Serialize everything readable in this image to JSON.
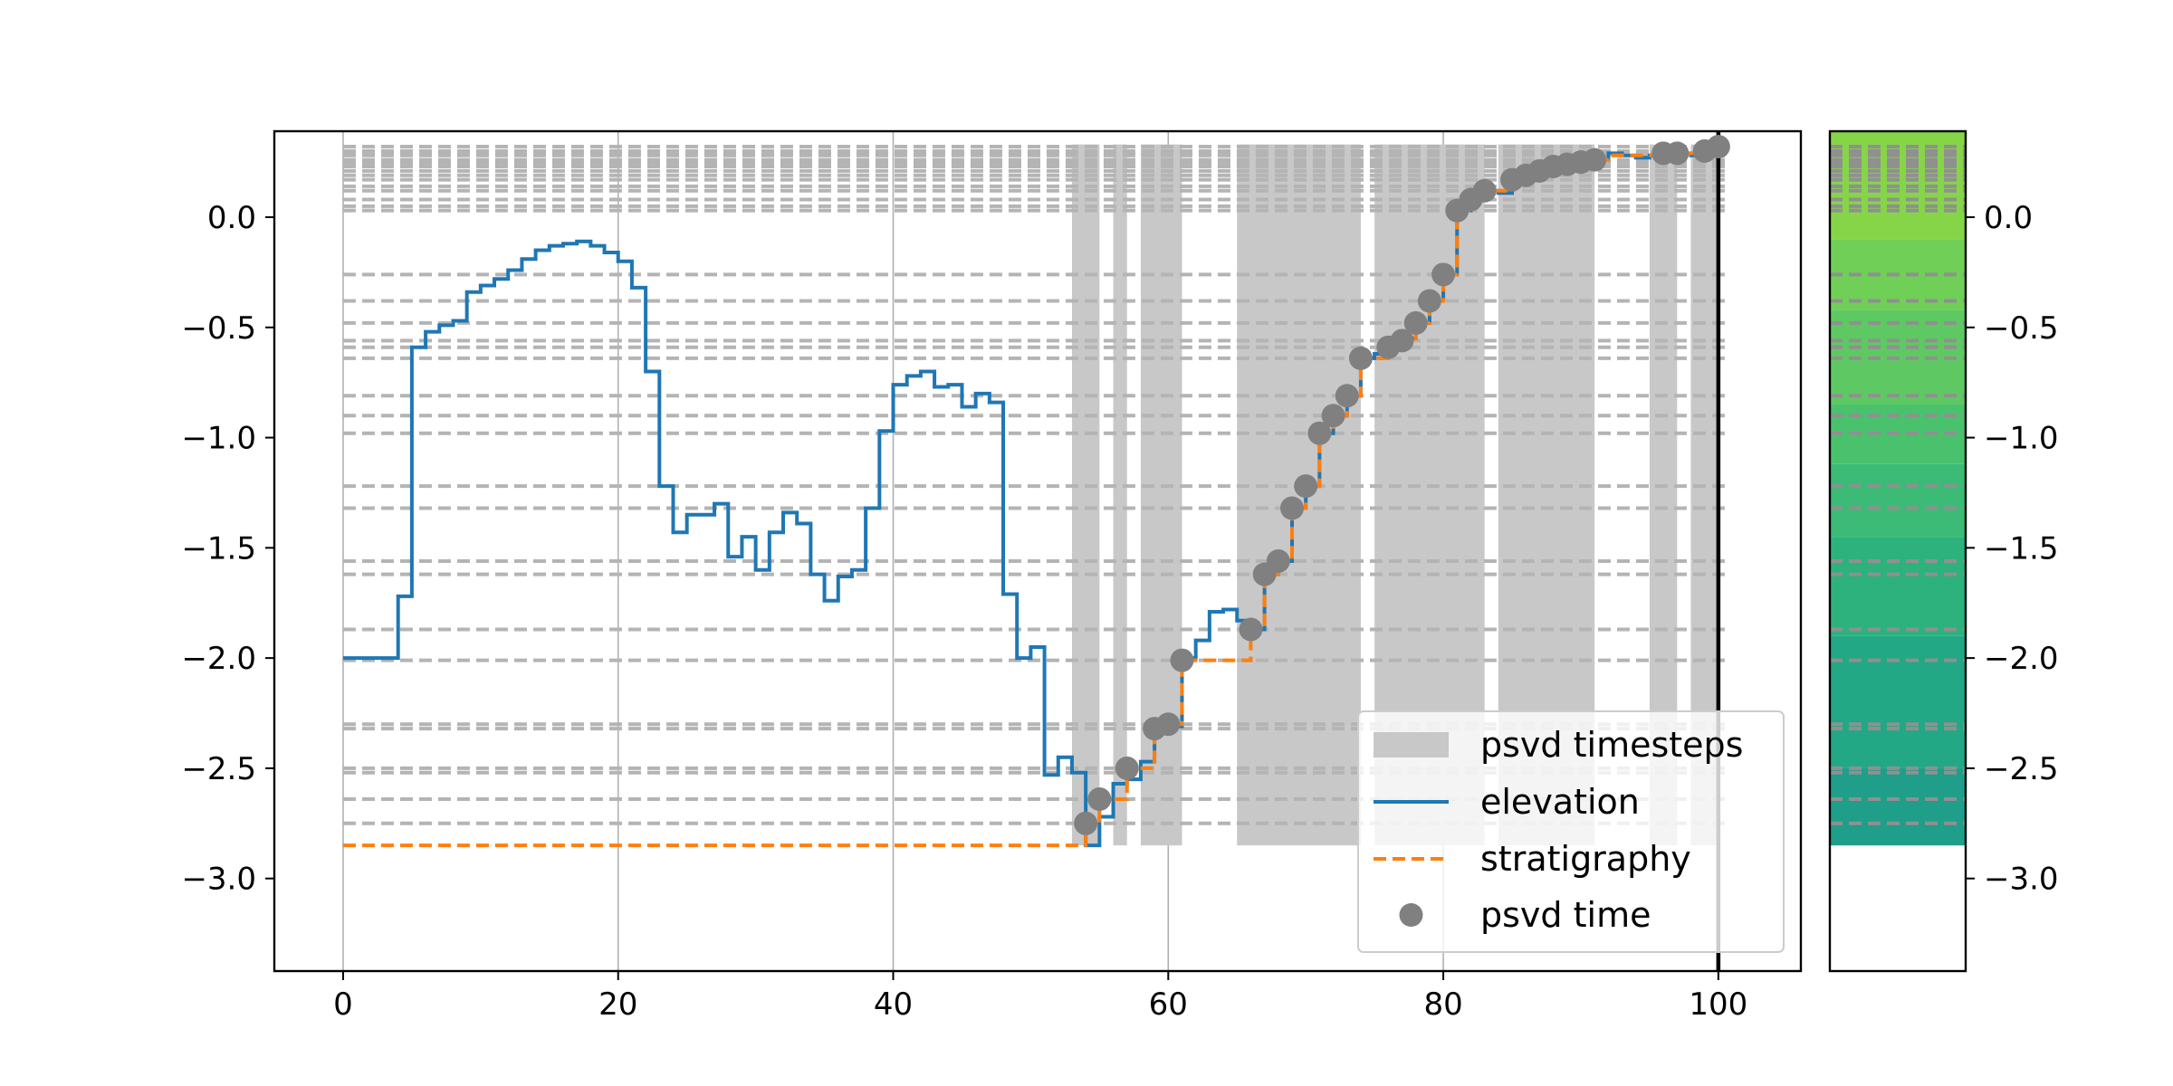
{
  "chart_data": {
    "type": "line",
    "title": "",
    "xlabel": "",
    "ylabel": "",
    "xlim": [
      -5,
      106
    ],
    "ylim": [
      -3.42,
      0.39
    ],
    "xticks": [
      0,
      20,
      40,
      60,
      80,
      100
    ],
    "xtick_labels": [
      "0",
      "20",
      "40",
      "60",
      "80",
      "100"
    ],
    "yticks": [
      0.0,
      -0.5,
      -1.0,
      -1.5,
      -2.0,
      -2.5,
      -3.0
    ],
    "ytick_labels": [
      "0.0",
      "−0.5",
      "−1.0",
      "−1.5",
      "−2.0",
      "−2.5",
      "−3.0"
    ],
    "grid": "x-axis vertical lines",
    "legend": {
      "placement": "bottom-right",
      "entries": [
        {
          "label": "psvd timesteps",
          "kind": "patch",
          "color": "#c8c8c8"
        },
        {
          "label": "elevation",
          "kind": "line",
          "color": "#1f77b4"
        },
        {
          "label": "stratigraphy",
          "kind": "dashed",
          "color": "#ff7f0e"
        },
        {
          "label": "psvd time",
          "kind": "marker",
          "color": "#808080"
        }
      ]
    },
    "series": [
      {
        "name": "elevation",
        "color": "#1f77b4",
        "draw": "steps-post",
        "x": [
          0,
          1,
          2,
          3,
          4,
          5,
          6,
          7,
          8,
          9,
          10,
          11,
          12,
          13,
          14,
          15,
          16,
          17,
          18,
          19,
          20,
          21,
          22,
          23,
          24,
          25,
          26,
          27,
          28,
          29,
          30,
          31,
          32,
          33,
          34,
          35,
          36,
          37,
          38,
          39,
          40,
          41,
          42,
          43,
          44,
          45,
          46,
          47,
          48,
          49,
          50,
          51,
          52,
          53,
          54,
          55,
          56,
          57,
          58,
          59,
          60,
          61,
          62,
          63,
          64,
          65,
          66,
          67,
          68,
          69,
          70,
          71,
          72,
          73,
          74,
          75,
          76,
          77,
          78,
          79,
          80,
          81,
          82,
          83,
          84,
          85,
          86,
          87,
          88,
          89,
          90,
          91,
          92,
          93,
          94,
          95,
          96,
          97,
          98,
          99,
          100
        ],
        "y": [
          -2.0,
          -2.0,
          -2.0,
          -2.0,
          -1.72,
          -0.59,
          -0.52,
          -0.49,
          -0.47,
          -0.34,
          -0.31,
          -0.28,
          -0.24,
          -0.19,
          -0.15,
          -0.13,
          -0.12,
          -0.11,
          -0.13,
          -0.16,
          -0.2,
          -0.32,
          -0.7,
          -1.22,
          -1.43,
          -1.35,
          -1.35,
          -1.3,
          -1.54,
          -1.45,
          -1.6,
          -1.43,
          -1.34,
          -1.39,
          -1.62,
          -1.74,
          -1.63,
          -1.6,
          -1.32,
          -0.97,
          -0.76,
          -0.72,
          -0.7,
          -0.77,
          -0.76,
          -0.86,
          -0.8,
          -0.84,
          -1.71,
          -2.0,
          -1.95,
          -2.53,
          -2.45,
          -2.52,
          -2.85,
          -2.72,
          -2.57,
          -2.55,
          -2.47,
          -2.32,
          -2.31,
          -2.0,
          -1.92,
          -1.79,
          -1.78,
          -1.83,
          -1.87,
          -1.62,
          -1.56,
          -1.32,
          -1.22,
          -0.98,
          -0.9,
          -0.81,
          -0.64,
          -0.62,
          -0.59,
          -0.55,
          -0.48,
          -0.38,
          -0.26,
          0.03,
          0.08,
          0.12,
          0.11,
          0.17,
          0.19,
          0.21,
          0.23,
          0.24,
          0.25,
          0.26,
          0.29,
          0.28,
          0.27,
          0.28,
          0.29,
          0.29,
          0.28,
          0.3,
          0.32
        ]
      },
      {
        "name": "stratigraphy",
        "color": "#ff7f0e",
        "draw": "steps-post-dashed",
        "x": [
          0,
          53,
          54,
          55,
          56,
          57,
          58,
          59,
          60,
          61,
          65,
          66,
          67,
          68,
          69,
          70,
          71,
          72,
          73,
          74,
          75,
          76,
          77,
          78,
          79,
          80,
          81,
          82,
          83,
          84,
          85,
          86,
          87,
          88,
          89,
          90,
          91,
          92,
          93,
          94,
          95,
          96,
          97,
          98,
          99,
          100
        ],
        "y": [
          -2.85,
          -2.85,
          -2.75,
          -2.64,
          -2.64,
          -2.5,
          -2.5,
          -2.32,
          -2.3,
          -2.01,
          -2.01,
          -1.87,
          -1.62,
          -1.56,
          -1.32,
          -1.22,
          -0.98,
          -0.9,
          -0.81,
          -0.64,
          -0.64,
          -0.59,
          -0.56,
          -0.48,
          -0.38,
          -0.26,
          0.03,
          0.08,
          0.12,
          0.12,
          0.17,
          0.19,
          0.21,
          0.23,
          0.24,
          0.25,
          0.26,
          0.28,
          0.28,
          0.28,
          0.28,
          0.29,
          0.29,
          0.29,
          0.3,
          0.32
        ]
      },
      {
        "name": "psvd time",
        "color": "#808080",
        "draw": "markers",
        "x": [
          54,
          55,
          57,
          59,
          60,
          61,
          66,
          67,
          68,
          69,
          70,
          71,
          72,
          73,
          74,
          76,
          77,
          78,
          79,
          80,
          81,
          82,
          83,
          85,
          86,
          87,
          88,
          89,
          90,
          91,
          96,
          97,
          99,
          100
        ],
        "y": [
          -2.75,
          -2.64,
          -2.5,
          -2.32,
          -2.3,
          -2.01,
          -1.87,
          -1.62,
          -1.56,
          -1.32,
          -1.22,
          -0.98,
          -0.9,
          -0.81,
          -0.64,
          -0.59,
          -0.56,
          -0.48,
          -0.38,
          -0.26,
          0.03,
          0.08,
          0.12,
          0.17,
          0.19,
          0.21,
          0.23,
          0.24,
          0.25,
          0.26,
          0.29,
          0.29,
          0.3,
          0.32
        ]
      }
    ],
    "shaded_spans": {
      "name": "psvd timesteps",
      "color": "#c8c8c8",
      "y_bottom": -2.85,
      "y_top": 0.33,
      "x_ranges": [
        [
          53,
          55
        ],
        [
          56,
          57
        ],
        [
          58,
          61
        ],
        [
          65,
          74
        ],
        [
          75,
          83
        ],
        [
          84,
          91
        ],
        [
          95,
          97
        ],
        [
          98,
          100
        ]
      ]
    },
    "horizontal_levels": {
      "color": "#b4b4b4",
      "x_range": [
        0,
        100.8
      ],
      "y": [
        -2.75,
        -2.64,
        -2.52,
        -2.5,
        -2.32,
        -2.3,
        -2.01,
        -1.87,
        -1.62,
        -1.56,
        -1.32,
        -1.22,
        -0.98,
        -0.9,
        -0.81,
        -0.64,
        -0.59,
        -0.56,
        -0.48,
        -0.38,
        -0.26,
        0.03,
        0.05,
        0.08,
        0.12,
        0.14,
        0.17,
        0.19,
        0.21,
        0.23,
        0.24,
        0.25,
        0.26,
        0.28,
        0.29,
        0.3,
        0.32
      ]
    },
    "end_marker_x": 100,
    "side_panel": {
      "kind": "stratigraphic column",
      "y_bottom": -2.85,
      "y_top": 0.39,
      "color_bands": [
        {
          "from": -2.85,
          "to": -2.5,
          "color": "#1f9e89"
        },
        {
          "from": -2.5,
          "to": -1.9,
          "color": "#22a884"
        },
        {
          "from": -1.9,
          "to": -1.45,
          "color": "#2db27d"
        },
        {
          "from": -1.45,
          "to": -1.12,
          "color": "#3bbb75"
        },
        {
          "from": -1.12,
          "to": -0.85,
          "color": "#4ac16d"
        },
        {
          "from": -0.85,
          "to": -0.42,
          "color": "#5ec962"
        },
        {
          "from": -0.42,
          "to": -0.1,
          "color": "#70cf57"
        },
        {
          "from": -0.1,
          "to": 0.39,
          "color": "#86d549"
        }
      ],
      "yticks": [
        0.0,
        -0.5,
        -1.0,
        -1.5,
        -2.0,
        -2.5,
        -3.0
      ],
      "ytick_labels": [
        "0.0",
        "−0.5",
        "−1.0",
        "−1.5",
        "−2.0",
        "−2.5",
        "−3.0"
      ]
    }
  }
}
